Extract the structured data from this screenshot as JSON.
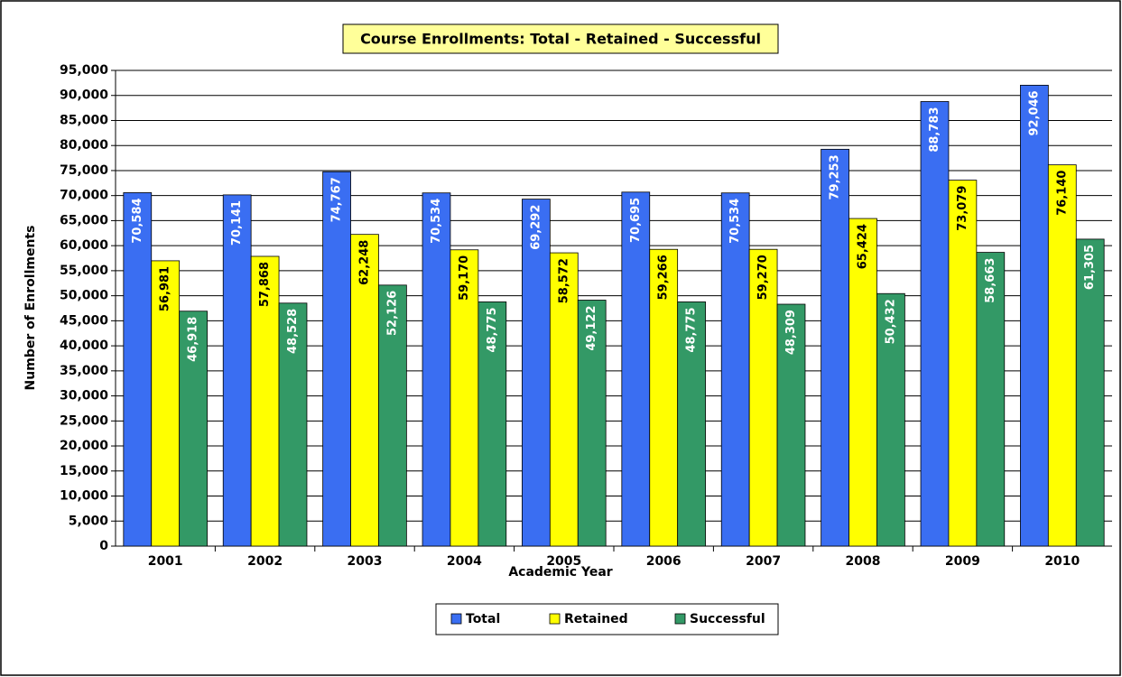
{
  "chart_data": {
    "type": "bar",
    "title": "Course Enrollments: Total - Retained - Successful",
    "x_label": "Academic Year",
    "y_label": "Number of Enrollments",
    "categories": [
      "2001",
      "2002",
      "2003",
      "2004",
      "2005",
      "2006",
      "2007",
      "2008",
      "2009",
      "2010"
    ],
    "series": [
      {
        "name": "Total",
        "color": "#3a6ef2",
        "label_color": "#ffffff",
        "values": [
          70584,
          70141,
          74767,
          70534,
          69292,
          70695,
          70534,
          79253,
          88783,
          92046
        ],
        "value_labels": [
          "70,584",
          "70,141",
          "74,767",
          "70,534",
          "69,292",
          "70,695",
          "70,534",
          "79,253",
          "88,783",
          "92,046"
        ]
      },
      {
        "name": "Retained",
        "color": "#ffff00",
        "label_color": "#000000",
        "values": [
          56981,
          57868,
          62248,
          59170,
          58572,
          59266,
          59270,
          65424,
          73079,
          76140
        ],
        "value_labels": [
          "56,981",
          "57,868",
          "62,248",
          "59,170",
          "58,572",
          "59,266",
          "59,270",
          "65,424",
          "73,079",
          "76,140"
        ]
      },
      {
        "name": "Successful",
        "color": "#339966",
        "label_color": "#ffffff",
        "values": [
          46918,
          48528,
          52126,
          48775,
          49122,
          48775,
          48309,
          50432,
          58663,
          61305
        ],
        "value_labels": [
          "46,918",
          "48,528",
          "52,126",
          "48,775",
          "49,122",
          "48,775",
          "48,309",
          "50,432",
          "58,663",
          "61,305"
        ]
      }
    ],
    "ylim": [
      0,
      95000
    ],
    "yticks": [
      0,
      {
        "value": 5000,
        "label": "5,000"
      },
      {
        "value": 10000,
        "label": "10,000"
      },
      {
        "value": 15000,
        "label": "15,000"
      },
      {
        "value": 20000,
        "label": "20,000"
      },
      {
        "value": 25000,
        "label": "25,000"
      },
      {
        "value": 30000,
        "label": "30,000"
      },
      {
        "value": 35000,
        "label": "35,000"
      },
      {
        "value": 40000,
        "label": "40,000"
      },
      {
        "value": 45000,
        "label": "45,000"
      },
      {
        "value": 50000,
        "label": "50,000"
      },
      {
        "value": 55000,
        "label": "55,000"
      },
      {
        "value": 60000,
        "label": "60,000"
      },
      {
        "value": 65000,
        "label": "65,000"
      },
      {
        "value": 70000,
        "label": "70,000"
      },
      {
        "value": 75000,
        "label": "75,000"
      },
      {
        "value": 80000,
        "label": "80,000"
      },
      {
        "value": 85000,
        "label": "85,000"
      },
      {
        "value": 90000,
        "label": "90,000"
      },
      {
        "value": 95000,
        "label": "95,000"
      }
    ],
    "grid": true,
    "legend": "bottom"
  }
}
